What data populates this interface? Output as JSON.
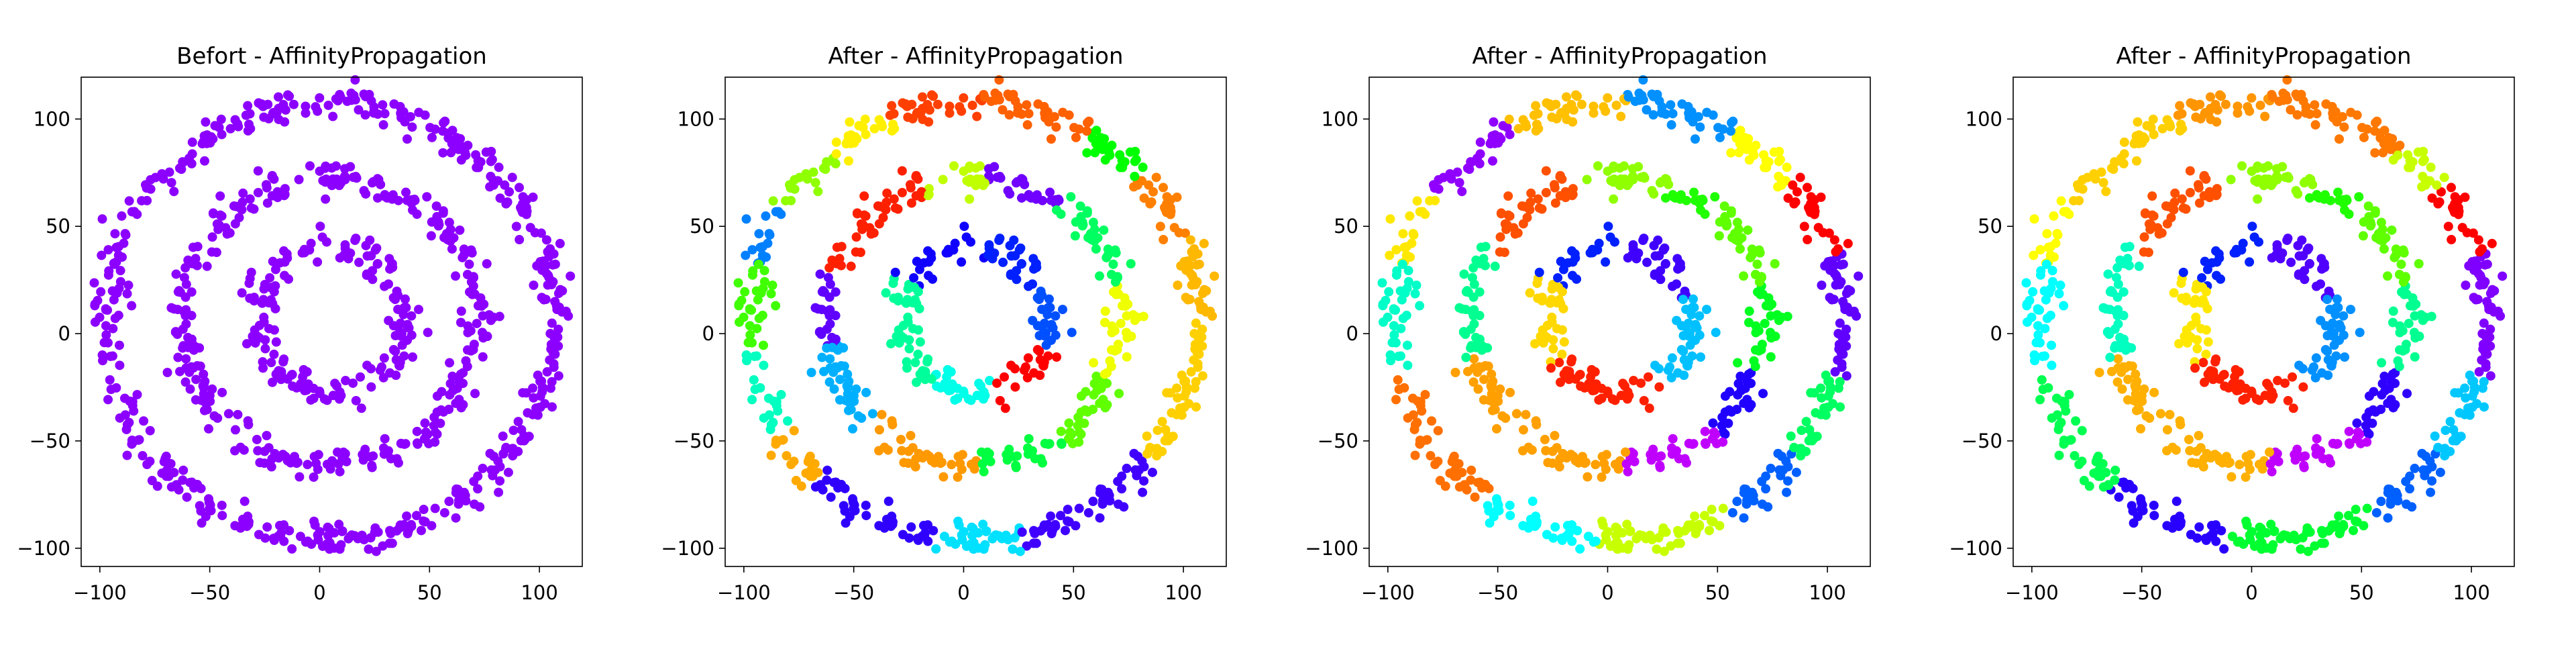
{
  "chart_data": [
    {
      "type": "scatter",
      "title": "Befort - AffinityPropagation",
      "xlim": [
        -108.5,
        119.5
      ],
      "ylim": [
        -108.5,
        119.5
      ],
      "xticks": [
        -100,
        -50,
        0,
        50,
        100
      ],
      "yticks": [
        -100,
        -50,
        0,
        50,
        100
      ],
      "xtick_labels": [
        "−100",
        "−50",
        "0",
        "50",
        "100"
      ],
      "ytick_labels": [
        "−100",
        "−50",
        "0",
        "50",
        "100"
      ],
      "grid": false,
      "center": [
        5,
        6
      ],
      "rings": [
        {
          "radius": 35,
          "noise": 5,
          "points": 170,
          "segments": [
            [
              0,
              360,
              "#8c00ff"
            ]
          ]
        },
        {
          "radius": 67,
          "noise": 5,
          "points": 320,
          "segments": [
            [
              0,
              360,
              "#8c00ff"
            ]
          ]
        },
        {
          "radius": 102,
          "noise": 5,
          "points": 480,
          "segments": [
            [
              0,
              360,
              "#8c00ff"
            ]
          ]
        }
      ]
    },
    {
      "type": "scatter",
      "title": "After - AffinityPropagation",
      "xlim": [
        -108.5,
        119.5
      ],
      "ylim": [
        -108.5,
        119.5
      ],
      "xticks": [
        -100,
        -50,
        0,
        50,
        100
      ],
      "yticks": [
        -100,
        -50,
        0,
        50,
        100
      ],
      "xtick_labels": [
        "−100",
        "−50",
        "0",
        "50",
        "100"
      ],
      "ytick_labels": [
        "−100",
        "−50",
        "0",
        "50",
        "100"
      ],
      "grid": false,
      "center": [
        5,
        6
      ],
      "rings": [
        {
          "radius": 35,
          "noise": 5,
          "points": 170,
          "segments": [
            [
              80,
              150,
              "#1000ff"
            ],
            [
              150,
              235,
              "#00ff9a"
            ],
            [
              235,
              285,
              "#00ffe8"
            ],
            [
              285,
              340,
              "#ff0000"
            ],
            [
              340,
              390,
              "#0050ff"
            ],
            [
              30,
              80,
              "#0020ff"
            ]
          ]
        },
        {
          "radius": 67,
          "noise": 5,
          "points": 320,
          "segments": [
            [
              85,
              110,
              "#c0ff00"
            ],
            [
              110,
              160,
              "#ff2000"
            ],
            [
              160,
              190,
              "#6000ff"
            ],
            [
              190,
              225,
              "#00b0ff"
            ],
            [
              225,
              272,
              "#ff9900"
            ],
            [
              272,
              305,
              "#00ff40"
            ],
            [
              305,
              335,
              "#60ff00"
            ],
            [
              335,
              375,
              "#f0ff00"
            ],
            [
              15,
              55,
              "#00ff60"
            ],
            [
              55,
              85,
              "#7000ff"
            ]
          ]
        },
        {
          "radius": 102,
          "noise": 5,
          "points": 480,
          "segments": [
            [
              320,
              360,
              "#ffd000"
            ],
            [
              0,
              22,
              "#ffb800"
            ],
            [
              22,
              42,
              "#ff8000"
            ],
            [
              42,
              60,
              "#00ff00"
            ],
            [
              60,
              88,
              "#ff6000"
            ],
            [
              88,
              112,
              "#ff4000"
            ],
            [
              112,
              130,
              "#fff000"
            ],
            [
              130,
              150,
              "#90ff00"
            ],
            [
              150,
              165,
              "#0080ff"
            ],
            [
              165,
              188,
              "#40ff00"
            ],
            [
              188,
              210,
              "#00ffc0"
            ],
            [
              210,
              225,
              "#ffaa00"
            ],
            [
              225,
              260,
              "#3000ff"
            ],
            [
              260,
              282,
              "#00e0ff"
            ],
            [
              282,
              320,
              "#4000ff"
            ]
          ]
        }
      ]
    },
    {
      "type": "scatter",
      "title": "After - AffinityPropagation",
      "xlim": [
        -108.5,
        119.5
      ],
      "ylim": [
        -108.5,
        119.5
      ],
      "xticks": [
        -100,
        -50,
        0,
        50,
        100
      ],
      "yticks": [
        -100,
        -50,
        0,
        50,
        100
      ],
      "xtick_labels": [
        "−100",
        "−50",
        "0",
        "50",
        "100"
      ],
      "ytick_labels": [
        "−100",
        "−50",
        "0",
        "50",
        "100"
      ],
      "grid": false,
      "center": [
        5,
        6
      ],
      "rings": [
        {
          "radius": 35,
          "noise": 5,
          "points": 170,
          "segments": [
            [
              90,
              150,
              "#0020ff"
            ],
            [
              20,
              90,
              "#4000ff"
            ],
            [
              150,
              215,
              "#ffd800"
            ],
            [
              215,
              305,
              "#ff2000"
            ],
            [
              305,
              380,
              "#00c0ff"
            ]
          ]
        },
        {
          "radius": 67,
          "noise": 5,
          "points": 320,
          "segments": [
            [
              70,
              105,
              "#90ff00"
            ],
            [
              105,
              150,
              "#ff5000"
            ],
            [
              150,
              195,
              "#00ff90"
            ],
            [
              195,
              273,
              "#ffa000"
            ],
            [
              273,
              310,
              "#c000ff"
            ],
            [
              310,
              340,
              "#2000ff"
            ],
            [
              340,
              375,
              "#00ff20"
            ],
            [
              15,
              50,
              "#60ff00"
            ],
            [
              50,
              70,
              "#20ff00"
            ]
          ]
        },
        {
          "radius": 102,
          "noise": 5,
          "points": 480,
          "segments": [
            [
              60,
              88,
              "#0090ff"
            ],
            [
              88,
              118,
              "#ffc000"
            ],
            [
              118,
              145,
              "#9000ff"
            ],
            [
              145,
              165,
              "#ffe800"
            ],
            [
              165,
              195,
              "#00ffc8"
            ],
            [
              195,
              235,
              "#ff7000"
            ],
            [
              235,
              265,
              "#00ffff"
            ],
            [
              265,
              300,
              "#c8ff00"
            ],
            [
              300,
              322,
              "#0060ff"
            ],
            [
              322,
              345,
              "#00ff60"
            ],
            [
              345,
              378,
              "#6000ff"
            ],
            [
              18,
              40,
              "#ff0000"
            ],
            [
              40,
              60,
              "#ffff00"
            ]
          ]
        }
      ]
    },
    {
      "type": "scatter",
      "title": "After - AffinityPropagation",
      "xlim": [
        -108.5,
        119.5
      ],
      "ylim": [
        -108.5,
        119.5
      ],
      "xticks": [
        -100,
        -50,
        0,
        50,
        100
      ],
      "yticks": [
        -100,
        -50,
        0,
        50,
        100
      ],
      "xtick_labels": [
        "−100",
        "−50",
        "0",
        "50",
        "100"
      ],
      "ytick_labels": [
        "−100",
        "−50",
        "0",
        "50",
        "100"
      ],
      "grid": false,
      "center": [
        5,
        6
      ],
      "rings": [
        {
          "radius": 35,
          "noise": 5,
          "points": 170,
          "segments": [
            [
              90,
              150,
              "#0020ff"
            ],
            [
              20,
              90,
              "#5000ff"
            ],
            [
              150,
              215,
              "#ffe800"
            ],
            [
              215,
              305,
              "#ff2000"
            ],
            [
              305,
              380,
              "#0090ff"
            ]
          ]
        },
        {
          "radius": 67,
          "noise": 5,
          "points": 320,
          "segments": [
            [
              70,
              105,
              "#90ff00"
            ],
            [
              105,
              150,
              "#ff5000"
            ],
            [
              150,
              195,
              "#00ffc0"
            ],
            [
              195,
              273,
              "#ffb000"
            ],
            [
              273,
              310,
              "#c000ff"
            ],
            [
              310,
              340,
              "#3000ff"
            ],
            [
              340,
              375,
              "#00ff90"
            ],
            [
              15,
              50,
              "#60ff00"
            ],
            [
              50,
              70,
              "#20ff00"
            ]
          ]
        },
        {
          "radius": 102,
          "noise": 5,
          "points": 480,
          "segments": [
            [
              52,
              88,
              "#ff7800"
            ],
            [
              88,
              112,
              "#ff9500"
            ],
            [
              112,
              148,
              "#ffd000"
            ],
            [
              148,
              165,
              "#ffff00"
            ],
            [
              165,
              195,
              "#00ffff"
            ],
            [
              195,
              228,
              "#00ff50"
            ],
            [
              228,
              262,
              "#2800ff"
            ],
            [
              262,
              300,
              "#00ff30"
            ],
            [
              300,
              322,
              "#0060ff"
            ],
            [
              322,
              345,
              "#00c8ff"
            ],
            [
              345,
              378,
              "#8000ff"
            ],
            [
              18,
              38,
              "#ff0000"
            ],
            [
              38,
              52,
              "#c8ff00"
            ]
          ]
        }
      ]
    }
  ]
}
